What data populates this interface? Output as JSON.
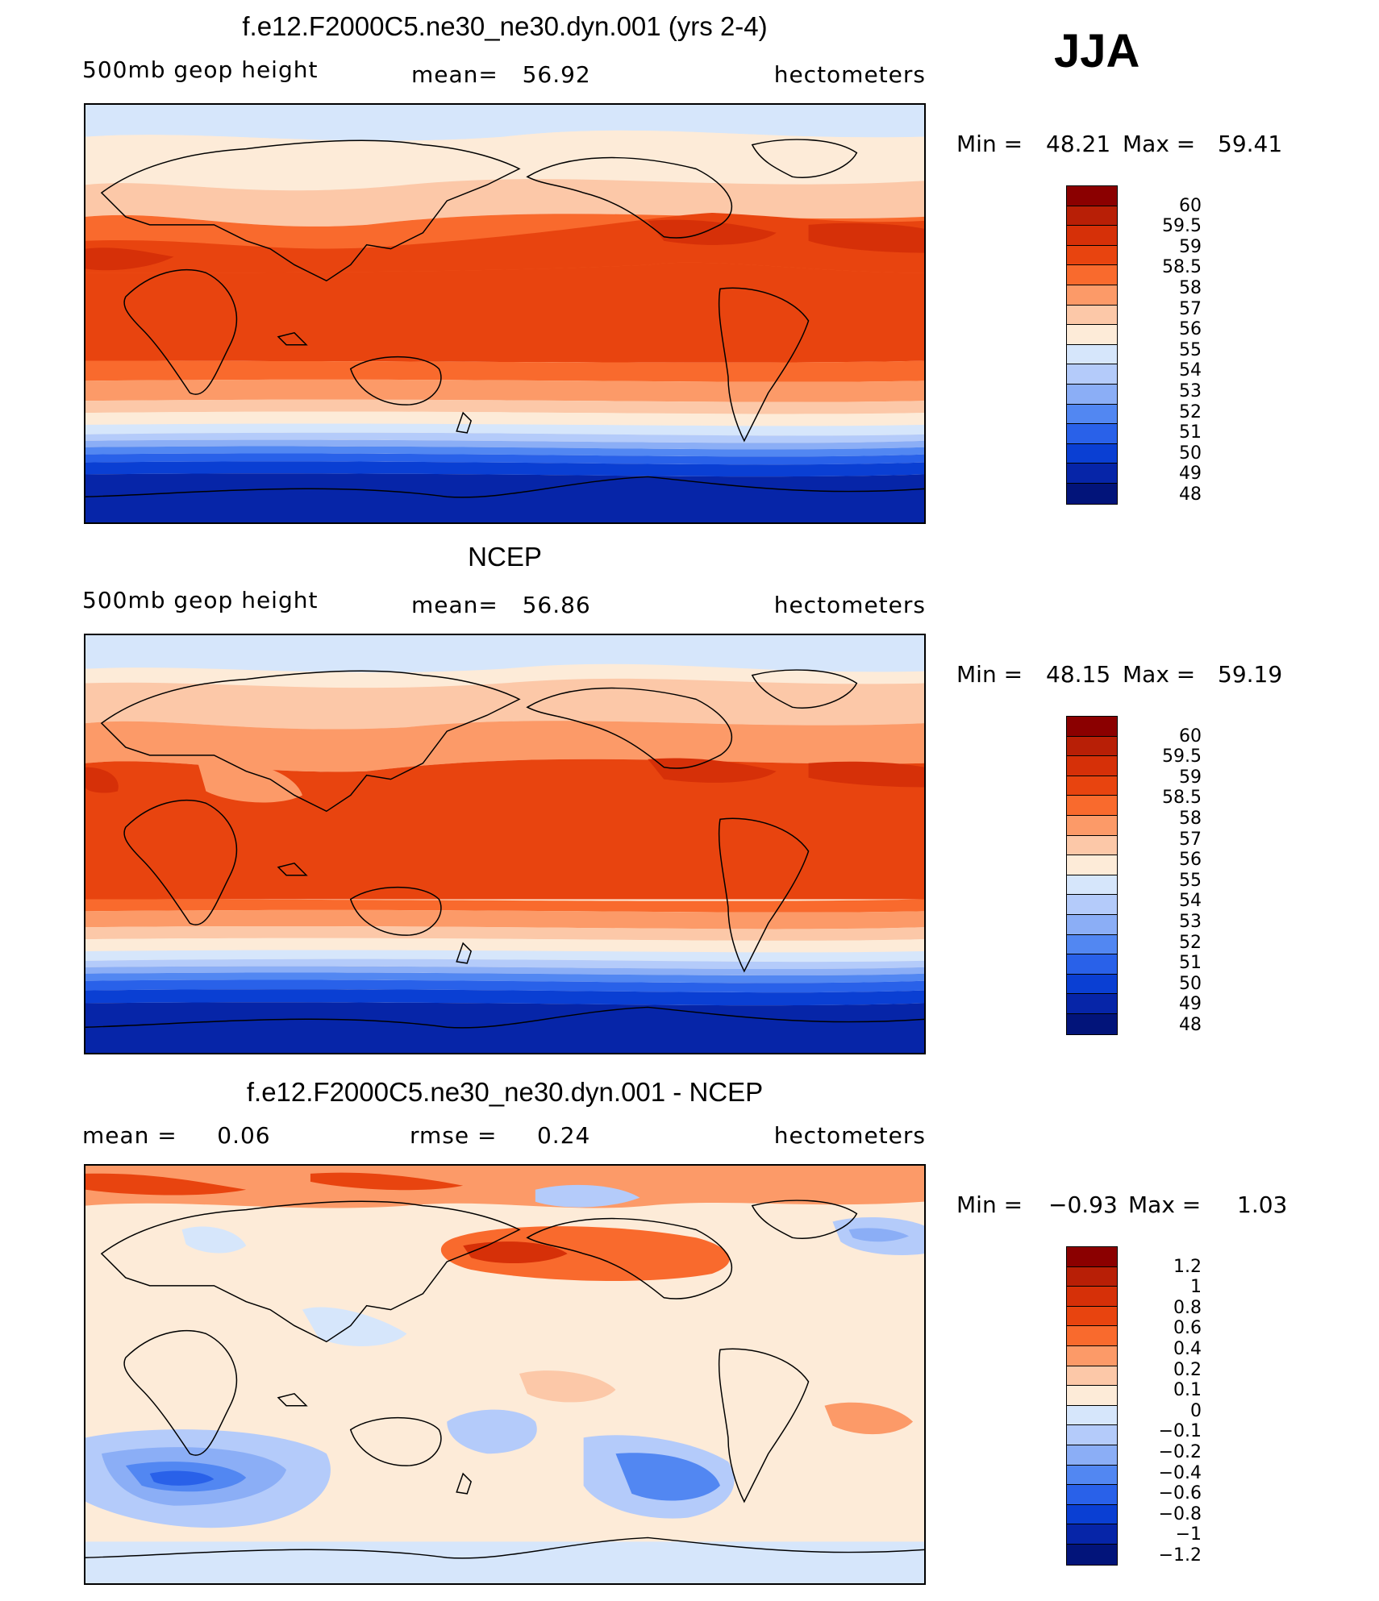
{
  "season": "JJA",
  "panels": [
    {
      "title": "f.e12.F2000C5.ne30_ne30.dyn.001 (yrs 2-4)",
      "left": "500mb geop height",
      "center": "mean=   56.92",
      "right": "hectometers",
      "minmax": {
        "min_label": "Min =",
        "min": "48.21",
        "max_label": "Max =",
        "max": "59.41"
      },
      "colorbar": {
        "labels": [
          "60",
          "59.5",
          "59",
          "58.5",
          "58",
          "57",
          "56",
          "55",
          "54",
          "53",
          "52",
          "51",
          "50",
          "49",
          "48"
        ],
        "colors": [
          "#8b0000",
          "#b81f06",
          "#d63008",
          "#e8440f",
          "#f96a2d",
          "#fc9a68",
          "#fcc8a8",
          "#fdebd8",
          "#d6e6fb",
          "#b4cbfa",
          "#8baef6",
          "#5287f2",
          "#2961e9",
          "#0a3fd3",
          "#0625a8",
          "#02147a"
        ]
      },
      "map_data": {
        "field": "500mb geopotential height",
        "units": "hectometers",
        "bands_top_to_bottom": [
          {
            "region": "north polar",
            "value": 54.5
          },
          {
            "region": "northern midlatitudes",
            "value": 56.5
          },
          {
            "region": "subtropics north",
            "value": 58.3
          },
          {
            "region": "tropics",
            "value": 58.7
          },
          {
            "region": "southern subtropics",
            "value": 57.5
          },
          {
            "region": "southern midlatitudes",
            "value": 54
          },
          {
            "region": "southern ocean",
            "value": 51
          },
          {
            "region": "antarctica",
            "value": 48.5
          }
        ]
      }
    },
    {
      "title": "NCEP",
      "left": "500mb geop height",
      "center": "mean=   56.86",
      "right": "hectometers",
      "minmax": {
        "min_label": "Min =",
        "min": "48.15",
        "max_label": "Max =",
        "max": "59.19"
      },
      "colorbar": {
        "labels": [
          "60",
          "59.5",
          "59",
          "58.5",
          "58",
          "57",
          "56",
          "55",
          "54",
          "53",
          "52",
          "51",
          "50",
          "49",
          "48"
        ],
        "colors": [
          "#8b0000",
          "#b81f06",
          "#d63008",
          "#e8440f",
          "#f96a2d",
          "#fc9a68",
          "#fcc8a8",
          "#fdebd8",
          "#d6e6fb",
          "#b4cbfa",
          "#8baef6",
          "#5287f2",
          "#2961e9",
          "#0a3fd3",
          "#0625a8",
          "#02147a"
        ]
      },
      "map_data": {
        "field": "500mb geopotential height",
        "units": "hectometers",
        "bands_top_to_bottom": [
          {
            "region": "north polar",
            "value": 54.5
          },
          {
            "region": "northern midlatitudes",
            "value": 56.5
          },
          {
            "region": "subtropics north",
            "value": 58.2
          },
          {
            "region": "tropics",
            "value": 58.6
          },
          {
            "region": "southern subtropics",
            "value": 57.5
          },
          {
            "region": "southern midlatitudes",
            "value": 54
          },
          {
            "region": "southern ocean",
            "value": 51
          },
          {
            "region": "antarctica",
            "value": 48.5
          }
        ]
      }
    },
    {
      "title": "f.e12.F2000C5.ne30_ne30.dyn.001 - NCEP",
      "left": "mean =     0.06",
      "center": "rmse =     0.24",
      "right": "hectometers",
      "minmax": {
        "min_label": "Min =",
        "min": "−0.93",
        "max_label": "Max =",
        "max": "1.03"
      },
      "colorbar": {
        "labels": [
          "1.2",
          "1",
          "0.8",
          "0.6",
          "0.4",
          "0.2",
          "0.1",
          "0",
          "−0.1",
          "−0.2",
          "−0.4",
          "−0.6",
          "−0.8",
          "−1",
          "−1.2"
        ],
        "colors": [
          "#8b0000",
          "#b81f06",
          "#d63008",
          "#e8440f",
          "#f96a2d",
          "#fc9a68",
          "#fcc8a8",
          "#fdebd8",
          "#d6e6fb",
          "#b4cbfa",
          "#8baef6",
          "#5287f2",
          "#2961e9",
          "#0a3fd3",
          "#0625a8",
          "#02147a"
        ]
      },
      "map_data": {
        "field": "500mb geopotential height difference",
        "units": "hectometers",
        "features": [
          {
            "region": "north pacific",
            "value": 0.9
          },
          {
            "region": "arctic",
            "value": 0.6
          },
          {
            "region": "tropics",
            "value": 0.05
          },
          {
            "region": "south indian ocean",
            "value": -0.8
          },
          {
            "region": "south atlantic",
            "value": -0.7
          }
        ]
      }
    }
  ]
}
